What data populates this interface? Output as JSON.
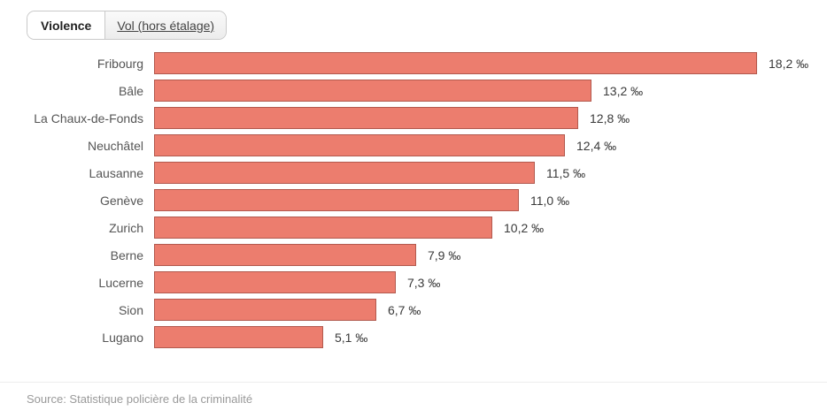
{
  "tabs": {
    "violence": {
      "label": "Violence",
      "active": true
    },
    "vol": {
      "label": "Vol (hors étalage)",
      "active": false
    }
  },
  "chart_data": {
    "type": "bar",
    "orientation": "horizontal",
    "title": "",
    "xlabel": "",
    "ylabel": "",
    "unit": "‰",
    "xlim": [
      0,
      18.2
    ],
    "grid": false,
    "legend": false,
    "categories": [
      "Fribourg",
      "Bâle",
      "La Chaux-de-Fonds",
      "Neuchâtel",
      "Lausanne",
      "Genève",
      "Zurich",
      "Berne",
      "Lucerne",
      "Sion",
      "Lugano"
    ],
    "values": [
      18.2,
      13.2,
      12.8,
      12.4,
      11.5,
      11.0,
      10.2,
      7.9,
      7.3,
      6.7,
      5.1
    ],
    "value_labels": [
      "18,2 ‰",
      "13,2 ‰",
      "12,8 ‰",
      "12,4 ‰",
      "11,5 ‰",
      "11,0 ‰",
      "10,2 ‰",
      "7,9 ‰",
      "7,3 ‰",
      "6,7 ‰",
      "5,1 ‰"
    ],
    "bar_fill": "#ec7d6e",
    "bar_border": "#b2594e"
  },
  "source": "Source: Statistique policière de la criminalité"
}
